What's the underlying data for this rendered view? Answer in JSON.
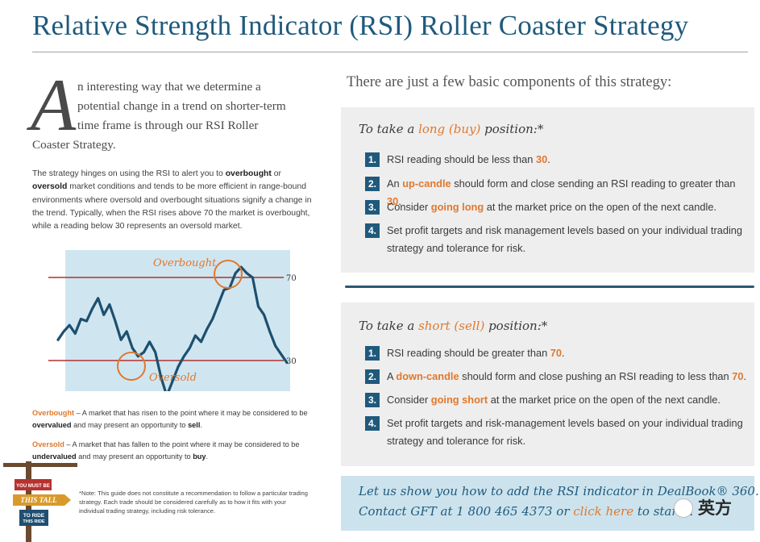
{
  "title": "Relative Strength Indicator (RSI) Roller Coaster Strategy",
  "intro": {
    "dropcap": "A",
    "lines": [
      "n interesting way that we determine a",
      "potential change in a trend on shorter-term",
      "time frame is through our RSI Roller"
    ],
    "last_line": "Coaster Strategy."
  },
  "paragraph": [
    {
      "t": "The strategy hinges on using the RSI to alert you to "
    },
    {
      "t": "overbought",
      "b": true
    },
    {
      "t": " or "
    },
    {
      "t": "oversold",
      "b": true
    },
    {
      "t": " market conditions and tends to be more efficient in range-bound environments where oversold and overbought situations signify a change in the trend. Typically, when the RSI rises above 70 the market is overbought, while a reading below 30 represents an oversold market."
    }
  ],
  "chart": {
    "overbought_label": "Overbought",
    "oversold_label": "Oversold",
    "level_high": "70",
    "level_low": "30",
    "background_color": "#cfe6f1",
    "line_color": "#1e4f6e",
    "level_line_color": "#b03030",
    "label_color": "#e1782c"
  },
  "chart_data": {
    "type": "line",
    "title": "",
    "xlabel": "",
    "ylabel": "",
    "ylim": [
      0,
      100
    ],
    "reference_lines": [
      70,
      30
    ],
    "series": [
      {
        "values": [
          40,
          44,
          47,
          43,
          50,
          49,
          55,
          60,
          52,
          57,
          49,
          40,
          44,
          36,
          32,
          34,
          39,
          34,
          22,
          13,
          20,
          27,
          32,
          36,
          42,
          39,
          45,
          50,
          57,
          64,
          65,
          72,
          75,
          72,
          70,
          56,
          52,
          44,
          37,
          33,
          29
        ]
      }
    ]
  },
  "definitions": [
    {
      "term": "Overbought",
      "parts": [
        {
          "t": " – A market that has risen to the point where it may be considered to be "
        },
        {
          "t": "overvalued",
          "b": true
        },
        {
          "t": " and may present an opportunity to "
        },
        {
          "t": "sell",
          "b": true
        },
        {
          "t": "."
        }
      ]
    },
    {
      "term": "Oversold",
      "parts": [
        {
          "t": " – A market that has fallen to the point where it may be considered to be "
        },
        {
          "t": "undervalued",
          "b": true
        },
        {
          "t": " and may present an opportunity to "
        },
        {
          "t": "buy",
          "b": true
        },
        {
          "t": "."
        }
      ]
    }
  ],
  "sign": {
    "line1": "YOU MUST BE",
    "line2": "THIS TALL",
    "line3": "TO RIDE",
    "line4": "THIS RIDE"
  },
  "note": "*Note: This guide does not constitute a recommendation to follow a particular trading strategy. Each trade should be considered carefully as to how it fits with your individual trading strategy, including risk tolerance.",
  "components_heading": "There are just a few basic components of this strategy:",
  "long": {
    "heading": [
      {
        "t": "To take a "
      },
      {
        "t": "long (buy)",
        "hl": true
      },
      {
        "t": " position:*"
      }
    ],
    "steps": [
      {
        "n": "1.",
        "parts": [
          {
            "t": "RSI reading should be less than "
          },
          {
            "t": "30",
            "o": true
          },
          {
            "t": "."
          }
        ]
      },
      {
        "n": "2.",
        "parts": [
          {
            "t": "An "
          },
          {
            "t": "up-candle",
            "o": true
          },
          {
            "t": " should form and close sending an RSI reading to greater than "
          },
          {
            "t": "30",
            "o": true
          },
          {
            "t": "."
          }
        ]
      },
      {
        "n": "3.",
        "parts": [
          {
            "t": "Consider "
          },
          {
            "t": "going long",
            "o": true
          },
          {
            "t": " at the market price on the open of the next candle."
          }
        ]
      },
      {
        "n": "4.",
        "parts": [
          {
            "t": "Set profit targets and risk management levels based on your individual trading strategy and tolerance for risk."
          }
        ]
      }
    ]
  },
  "short": {
    "heading": [
      {
        "t": "To take a "
      },
      {
        "t": "short (sell)",
        "hl": true
      },
      {
        "t": " position:*"
      }
    ],
    "steps": [
      {
        "n": "1.",
        "parts": [
          {
            "t": "RSI reading should be greater than "
          },
          {
            "t": "70",
            "o": true
          },
          {
            "t": "."
          }
        ]
      },
      {
        "n": "2.",
        "parts": [
          {
            "t": "A "
          },
          {
            "t": "down-candle",
            "o": true
          },
          {
            "t": " should form and close pushing an RSI reading to less than "
          },
          {
            "t": "70",
            "o": true
          },
          {
            "t": "."
          }
        ]
      },
      {
        "n": "3.",
        "parts": [
          {
            "t": "Consider "
          },
          {
            "t": "going short",
            "o": true
          },
          {
            "t": " at the market price on the open of the next candle."
          }
        ]
      },
      {
        "n": "4.",
        "parts": [
          {
            "t": "Set profit targets and risk-management levels based on your individual trading strategy and tolerance for risk."
          }
        ]
      }
    ]
  },
  "cta": {
    "line1": "Let us show you how to add the RSI indicator in DealBook® 360.",
    "line2_before": "Contact GFT at 1 800 465 4373 or ",
    "line2_link": "click here",
    "line2_after": " to start a "
  },
  "watermark": "英方",
  "colors": {
    "brand_blue": "#1f5a7c",
    "accent_orange": "#e1782c",
    "panel_gray": "#eeeeee",
    "cta_blue": "#cce3ee"
  }
}
